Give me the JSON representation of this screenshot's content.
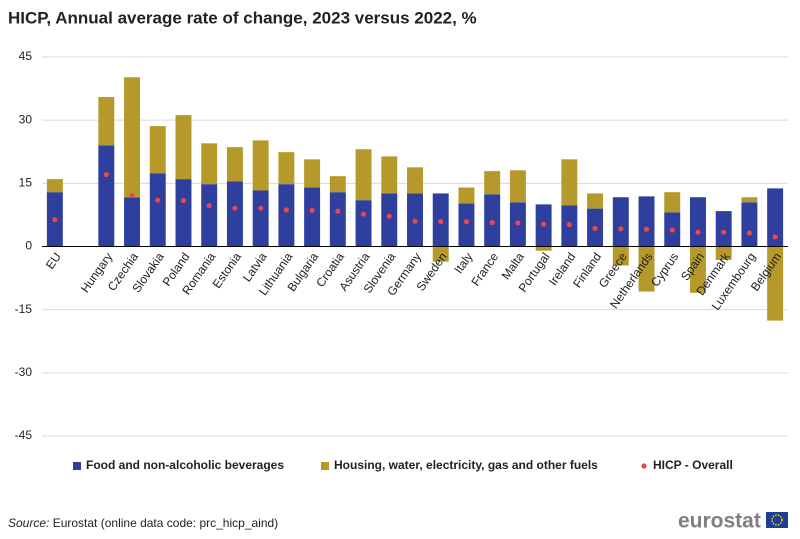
{
  "chart_data": {
    "type": "stacked-bar",
    "title": "HICP, Annual average rate of change, 2023 versus 2022, %",
    "categories": [
      "EU",
      null,
      "Hungary",
      "Czechia",
      "Slovakia",
      "Poland",
      "Romania",
      "Estonia",
      "Latvia",
      "Lithuania",
      "Bulgaria",
      "Croatia",
      "Asustria",
      "Slovenia",
      "Germany",
      "Sweden",
      "Italy",
      "France",
      "Malta",
      "Portugal",
      "Ireland",
      "Finland",
      "Greece",
      "Netherlands",
      "Cyprus",
      "Spain",
      "Denmark",
      "Luxembourg",
      "Belgium"
    ],
    "series": [
      {
        "name": "Food and non-alcoholic beverages",
        "color": "#2e3f9e",
        "values": [
          12.9,
          null,
          24.0,
          11.7,
          17.4,
          16.0,
          14.8,
          15.5,
          13.3,
          14.8,
          14.0,
          12.9,
          11.0,
          12.6,
          12.6,
          12.6,
          10.2,
          12.4,
          10.5,
          10.0,
          9.8,
          9.0,
          11.7,
          11.9,
          8.1,
          11.7,
          8.4,
          10.5,
          13.8
        ]
      },
      {
        "name": "Housing, water, electricity, gas and other fuels",
        "color": "#b59a2b",
        "values": [
          3.1,
          null,
          11.5,
          28.5,
          11.2,
          15.2,
          9.7,
          8.1,
          11.9,
          7.6,
          6.7,
          3.8,
          12.1,
          8.8,
          6.2,
          -3.6,
          3.8,
          5.5,
          7.6,
          -1.0,
          10.9,
          3.6,
          -4.5,
          -10.7,
          4.8,
          -11.0,
          -3.2,
          1.2,
          -17.6
        ]
      },
      {
        "name": "HICP - Overall",
        "color": "#e8484a",
        "type": "dot",
        "values": [
          6.4,
          null,
          17.1,
          12.1,
          11.0,
          10.9,
          9.7,
          9.1,
          9.1,
          8.7,
          8.6,
          8.4,
          7.7,
          7.2,
          6.0,
          5.9,
          5.9,
          5.7,
          5.6,
          5.3,
          5.2,
          4.3,
          4.2,
          4.1,
          3.9,
          3.4,
          3.4,
          3.2,
          2.3
        ]
      }
    ],
    "ylim": [
      -45,
      45
    ],
    "yticks": [
      -45,
      -30,
      -15,
      0,
      15,
      30,
      45
    ],
    "grid": true,
    "source_label": "Source:",
    "source": "Eurostat (online data code: prc_hicp_aind)",
    "logo": "eurostat"
  }
}
